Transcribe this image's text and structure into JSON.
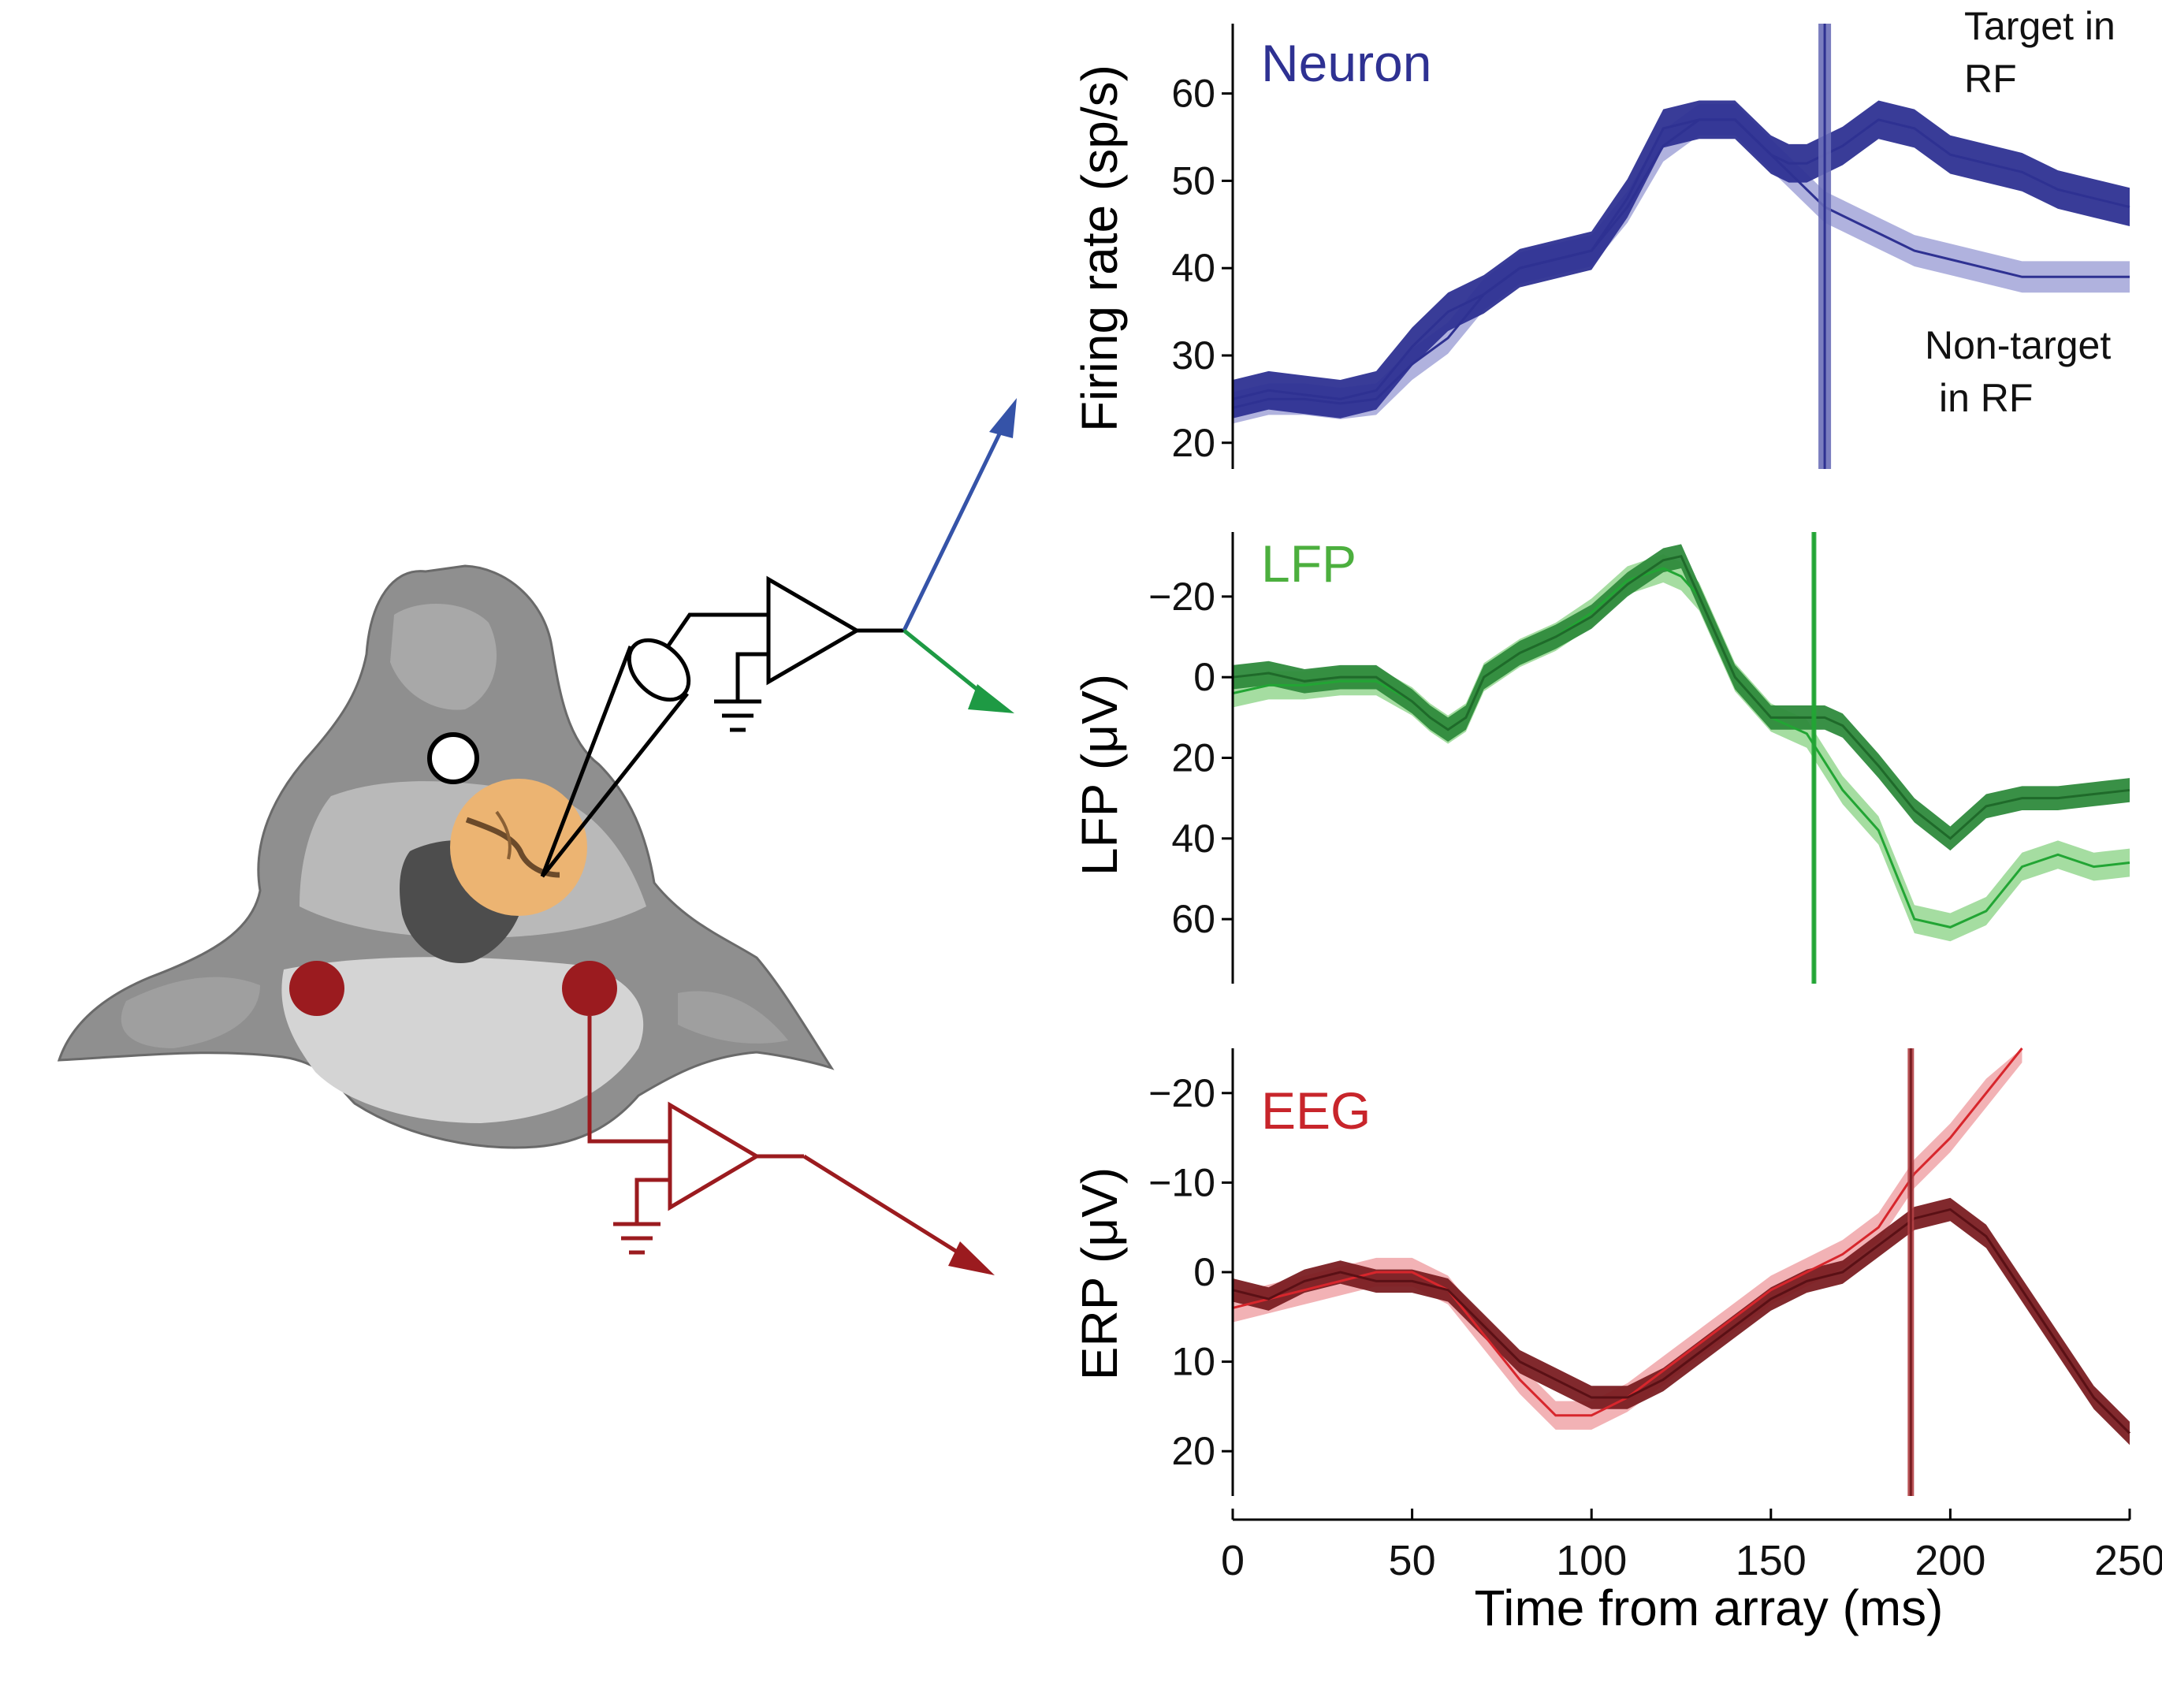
{
  "figure": {
    "xlabel": "Time from array (ms)",
    "colors": {
      "neuron_dark": "#2e3192",
      "neuron_light": "#9c9fd6",
      "lfp_dark": "#2e8a3c",
      "lfp_light": "#8fd48a",
      "lfp_line": "#22a534",
      "eeg_dark": "#7a1e22",
      "eeg_light": "#ef9fa3",
      "eeg_line": "#d7262c",
      "circuit_black": "#000000",
      "circuit_red": "#9b1b1f",
      "arrow_blue": "#3553a8",
      "arrow_green": "#1e9a44",
      "electrode_dot": "#9b1b1f"
    },
    "icons": [
      "brain-section-icon",
      "amplifier-icon",
      "ground-icon",
      "electrode-icon"
    ]
  },
  "chart_data": [
    {
      "type": "line",
      "name": "neuron-panel",
      "title": "Neuron",
      "ylabel": "Firing rate (sp/s)",
      "xlim": [
        0,
        250
      ],
      "ylim": [
        17,
        68
      ],
      "yticks": [
        20,
        30,
        40,
        50,
        60
      ],
      "y_inverted": false,
      "vline_x": 165,
      "annotations": [
        {
          "lines": [
            "Target in",
            "RF"
          ]
        },
        {
          "lines": [
            "Non-target",
            "in RF"
          ]
        }
      ],
      "series": [
        {
          "role": "target",
          "band": 2.2,
          "x": [
            0,
            10,
            20,
            30,
            40,
            50,
            60,
            70,
            80,
            90,
            100,
            110,
            120,
            130,
            140,
            150,
            155,
            160,
            165,
            170,
            180,
            190,
            200,
            210,
            220,
            230,
            240,
            250
          ],
          "y": [
            25,
            26,
            25.5,
            25,
            26,
            31,
            35,
            37,
            40,
            41,
            42,
            48,
            56,
            57,
            57,
            53,
            52,
            52,
            53,
            54,
            57,
            56,
            53,
            52,
            51,
            49,
            48,
            47
          ]
        },
        {
          "role": "non-target",
          "band": 1.8,
          "x": [
            0,
            10,
            20,
            30,
            40,
            50,
            60,
            70,
            80,
            90,
            100,
            110,
            120,
            130,
            140,
            150,
            155,
            160,
            165,
            170,
            180,
            190,
            200,
            210,
            220,
            230,
            240,
            250
          ],
          "y": [
            24,
            25,
            25,
            24.5,
            25,
            29,
            32,
            37,
            40,
            41,
            42,
            47,
            54,
            57,
            57,
            53,
            51,
            49,
            47,
            46,
            44,
            42,
            41,
            40,
            39,
            39,
            39,
            39
          ]
        }
      ]
    },
    {
      "type": "line",
      "name": "lfp-panel",
      "title": "LFP",
      "ylabel": "LFP (μV)",
      "xlim": [
        0,
        250
      ],
      "ylim": [
        -36,
        76
      ],
      "yticks": [
        -20,
        0,
        20,
        40,
        60
      ],
      "y_inverted": true,
      "vline_x": 162,
      "series": [
        {
          "role": "target",
          "band": 3,
          "x": [
            0,
            10,
            20,
            30,
            40,
            50,
            55,
            60,
            65,
            70,
            80,
            90,
            100,
            110,
            120,
            125,
            130,
            140,
            150,
            160,
            165,
            170,
            180,
            190,
            200,
            210,
            220,
            230,
            240,
            250
          ],
          "y": [
            0,
            -1,
            1,
            0,
            0,
            6,
            10,
            13,
            10,
            0,
            -6,
            -10,
            -15,
            -23,
            -29,
            -30,
            -20,
            0,
            10,
            10,
            10,
            12,
            22,
            33,
            40,
            32,
            30,
            30,
            29,
            28
          ]
        },
        {
          "role": "non-target",
          "band": 3.5,
          "x": [
            0,
            10,
            20,
            30,
            40,
            50,
            55,
            60,
            65,
            70,
            80,
            90,
            100,
            110,
            120,
            125,
            130,
            140,
            150,
            160,
            165,
            170,
            180,
            190,
            200,
            210,
            220,
            230,
            240,
            250
          ],
          "y": [
            4,
            2,
            2,
            1,
            1,
            6,
            10,
            13,
            10,
            0,
            -6,
            -10,
            -16,
            -24,
            -27,
            -25,
            -20,
            0,
            10,
            14,
            21,
            28,
            38,
            60,
            62,
            58,
            47,
            44,
            47,
            46
          ]
        }
      ]
    },
    {
      "type": "line",
      "name": "eeg-panel",
      "title": "EEG",
      "ylabel": "ERP (μV)",
      "xlim": [
        0,
        250
      ],
      "ylim": [
        -25,
        25
      ],
      "yticks": [
        -20,
        -10,
        0,
        10,
        20
      ],
      "xticks": [
        0,
        50,
        100,
        150,
        200,
        250
      ],
      "y_inverted": true,
      "vline_x": 189,
      "series": [
        {
          "role": "target",
          "band": 1.3,
          "x": [
            0,
            10,
            20,
            30,
            40,
            50,
            60,
            70,
            80,
            90,
            100,
            110,
            120,
            130,
            140,
            150,
            160,
            170,
            180,
            190,
            200,
            210,
            220,
            230,
            240,
            250
          ],
          "y": [
            2,
            3,
            1,
            0,
            1,
            1,
            2,
            6,
            10,
            12,
            14,
            14,
            12,
            9,
            6,
            3,
            1,
            0,
            -3,
            -6,
            -7,
            -4,
            2,
            8,
            14,
            18
          ]
        },
        {
          "role": "non-target",
          "band": 1.6,
          "x": [
            0,
            10,
            20,
            30,
            40,
            50,
            60,
            70,
            80,
            90,
            100,
            110,
            120,
            130,
            140,
            150,
            160,
            170,
            180,
            190,
            200,
            210,
            220
          ],
          "y": [
            4,
            3,
            2,
            1,
            0,
            0,
            2,
            7,
            12,
            16,
            16,
            14,
            11,
            8,
            5,
            2,
            0,
            -2,
            -5,
            -11,
            -15,
            -20,
            -25
          ]
        }
      ]
    }
  ]
}
